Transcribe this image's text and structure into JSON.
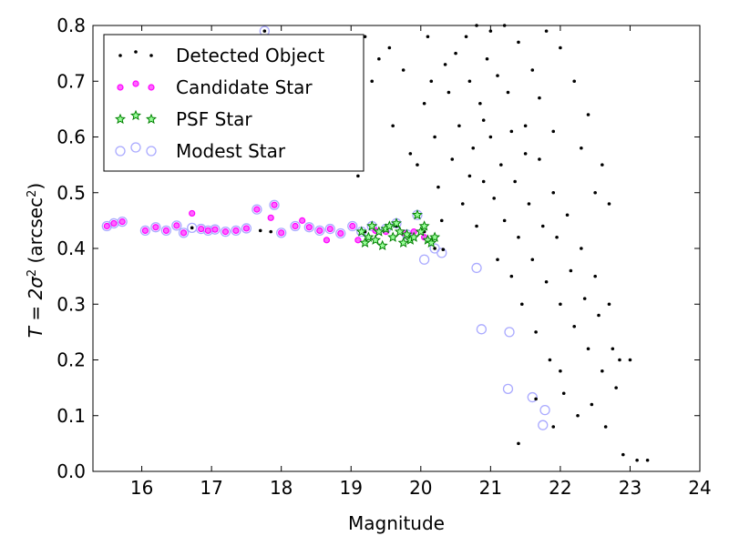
{
  "chart_data": {
    "type": "scatter",
    "xlabel": "Magnitude",
    "ylabel_prefix": "T = 2σ",
    "ylabel_suffix": " (arcsec",
    "ylabel_close": ")",
    "xlim": [
      15.3,
      24
    ],
    "ylim": [
      0.0,
      0.8
    ],
    "xticks": [
      16,
      17,
      18,
      19,
      20,
      21,
      22,
      23,
      24
    ],
    "yticks": [
      0.0,
      0.1,
      0.2,
      0.3,
      0.4,
      0.5,
      0.6,
      0.7,
      0.8
    ],
    "xtick_labels": [
      "16",
      "17",
      "18",
      "19",
      "20",
      "21",
      "22",
      "23",
      "24"
    ],
    "ytick_labels": [
      "0.0",
      "0.1",
      "0.2",
      "0.3",
      "0.4",
      "0.5",
      "0.6",
      "0.7",
      "0.8"
    ],
    "legend_position": "upper-left",
    "colors": {
      "detected": "#000000",
      "candidate": "#ff00ff",
      "psf": "#008000",
      "modest": "#aaaaff"
    },
    "series": [
      {
        "name": "Detected Object",
        "marker": "dot",
        "points": [
          [
            15.5,
            0.44
          ],
          [
            15.6,
            0.445
          ],
          [
            15.72,
            0.448
          ],
          [
            16.05,
            0.432
          ],
          [
            16.2,
            0.438
          ],
          [
            16.35,
            0.432
          ],
          [
            16.5,
            0.441
          ],
          [
            16.6,
            0.428
          ],
          [
            16.72,
            0.437
          ],
          [
            16.85,
            0.435
          ],
          [
            16.95,
            0.432
          ],
          [
            17.05,
            0.434
          ],
          [
            17.2,
            0.43
          ],
          [
            17.35,
            0.432
          ],
          [
            17.5,
            0.436
          ],
          [
            17.7,
            0.432
          ],
          [
            17.85,
            0.43
          ],
          [
            18.0,
            0.428
          ],
          [
            18.2,
            0.44
          ],
          [
            18.4,
            0.438
          ],
          [
            18.55,
            0.432
          ],
          [
            18.7,
            0.435
          ],
          [
            18.85,
            0.427
          ],
          [
            19.02,
            0.44
          ],
          [
            19.2,
            0.43
          ],
          [
            19.35,
            0.432
          ],
          [
            19.5,
            0.43
          ],
          [
            19.65,
            0.44
          ],
          [
            19.75,
            0.428
          ],
          [
            19.9,
            0.43
          ],
          [
            20.05,
            0.43
          ],
          [
            20.2,
            0.4
          ],
          [
            20.32,
            0.398
          ],
          [
            17.76,
            0.79
          ],
          [
            19.1,
            0.53
          ],
          [
            19.3,
            0.7
          ],
          [
            19.2,
            0.78
          ],
          [
            19.4,
            0.74
          ],
          [
            19.55,
            0.76
          ],
          [
            19.6,
            0.62
          ],
          [
            19.75,
            0.72
          ],
          [
            19.85,
            0.57
          ],
          [
            19.95,
            0.55
          ],
          [
            20.05,
            0.66
          ],
          [
            20.1,
            0.78
          ],
          [
            20.15,
            0.7
          ],
          [
            20.2,
            0.6
          ],
          [
            20.25,
            0.51
          ],
          [
            20.3,
            0.45
          ],
          [
            20.35,
            0.73
          ],
          [
            20.4,
            0.68
          ],
          [
            20.45,
            0.56
          ],
          [
            20.5,
            0.75
          ],
          [
            20.55,
            0.62
          ],
          [
            20.6,
            0.48
          ],
          [
            20.65,
            0.78
          ],
          [
            20.7,
            0.7
          ],
          [
            20.75,
            0.58
          ],
          [
            20.8,
            0.44
          ],
          [
            20.85,
            0.66
          ],
          [
            20.9,
            0.52
          ],
          [
            20.95,
            0.74
          ],
          [
            21.0,
            0.6
          ],
          [
            21.05,
            0.49
          ],
          [
            21.1,
            0.38
          ],
          [
            21.15,
            0.55
          ],
          [
            21.2,
            0.45
          ],
          [
            21.25,
            0.68
          ],
          [
            21.3,
            0.35
          ],
          [
            21.35,
            0.52
          ],
          [
            21.4,
            0.42
          ],
          [
            21.45,
            0.3
          ],
          [
            21.5,
            0.62
          ],
          [
            21.55,
            0.48
          ],
          [
            21.6,
            0.38
          ],
          [
            21.65,
            0.25
          ],
          [
            21.7,
            0.56
          ],
          [
            21.75,
            0.44
          ],
          [
            21.8,
            0.34
          ],
          [
            21.85,
            0.2
          ],
          [
            21.9,
            0.5
          ],
          [
            21.95,
            0.42
          ],
          [
            22.0,
            0.3
          ],
          [
            22.05,
            0.14
          ],
          [
            22.1,
            0.46
          ],
          [
            22.15,
            0.36
          ],
          [
            22.2,
            0.26
          ],
          [
            22.25,
            0.1
          ],
          [
            22.3,
            0.4
          ],
          [
            22.35,
            0.31
          ],
          [
            22.4,
            0.22
          ],
          [
            22.45,
            0.12
          ],
          [
            22.5,
            0.35
          ],
          [
            22.55,
            0.28
          ],
          [
            22.6,
            0.18
          ],
          [
            22.65,
            0.08
          ],
          [
            22.7,
            0.3
          ],
          [
            22.75,
            0.22
          ],
          [
            22.8,
            0.15
          ],
          [
            22.85,
            0.2
          ],
          [
            22.9,
            0.03
          ],
          [
            23.0,
            0.2
          ],
          [
            23.1,
            0.02
          ],
          [
            23.25,
            0.02
          ],
          [
            22.6,
            0.55
          ],
          [
            22.4,
            0.64
          ],
          [
            22.2,
            0.7
          ],
          [
            22.0,
            0.76
          ],
          [
            21.8,
            0.79
          ],
          [
            21.6,
            0.72
          ],
          [
            21.4,
            0.77
          ],
          [
            21.2,
            0.8
          ],
          [
            21.0,
            0.79
          ],
          [
            20.8,
            0.8
          ],
          [
            22.7,
            0.48
          ],
          [
            22.5,
            0.5
          ],
          [
            21.3,
            0.61
          ],
          [
            21.7,
            0.67
          ],
          [
            20.7,
            0.53
          ],
          [
            20.9,
            0.63
          ],
          [
            21.1,
            0.71
          ],
          [
            21.5,
            0.57
          ],
          [
            21.9,
            0.61
          ],
          [
            22.3,
            0.58
          ],
          [
            21.4,
            0.05
          ],
          [
            21.65,
            0.13
          ],
          [
            21.9,
            0.08
          ],
          [
            22.0,
            0.18
          ]
        ]
      },
      {
        "name": "Candidate Star",
        "marker": "circle",
        "points": [
          [
            15.5,
            0.44
          ],
          [
            15.6,
            0.445
          ],
          [
            15.72,
            0.448
          ],
          [
            16.05,
            0.432
          ],
          [
            16.2,
            0.438
          ],
          [
            16.35,
            0.432
          ],
          [
            16.5,
            0.441
          ],
          [
            16.6,
            0.428
          ],
          [
            16.72,
            0.463
          ],
          [
            16.85,
            0.435
          ],
          [
            16.95,
            0.432
          ],
          [
            17.05,
            0.434
          ],
          [
            17.2,
            0.43
          ],
          [
            17.35,
            0.432
          ],
          [
            17.5,
            0.436
          ],
          [
            17.65,
            0.47
          ],
          [
            17.85,
            0.455
          ],
          [
            17.9,
            0.478
          ],
          [
            18.0,
            0.428
          ],
          [
            18.2,
            0.44
          ],
          [
            18.3,
            0.45
          ],
          [
            18.4,
            0.438
          ],
          [
            18.55,
            0.432
          ],
          [
            18.65,
            0.415
          ],
          [
            18.7,
            0.435
          ],
          [
            18.85,
            0.427
          ],
          [
            19.02,
            0.44
          ],
          [
            19.1,
            0.415
          ],
          [
            19.35,
            0.432
          ],
          [
            19.5,
            0.43
          ],
          [
            19.75,
            0.428
          ],
          [
            19.9,
            0.43
          ],
          [
            20.05,
            0.42
          ]
        ]
      },
      {
        "name": "PSF Star",
        "marker": "star",
        "points": [
          [
            19.15,
            0.43
          ],
          [
            19.2,
            0.41
          ],
          [
            19.25,
            0.42
          ],
          [
            19.3,
            0.44
          ],
          [
            19.35,
            0.415
          ],
          [
            19.4,
            0.43
          ],
          [
            19.45,
            0.405
          ],
          [
            19.5,
            0.435
          ],
          [
            19.55,
            0.44
          ],
          [
            19.6,
            0.42
          ],
          [
            19.65,
            0.445
          ],
          [
            19.7,
            0.43
          ],
          [
            19.75,
            0.41
          ],
          [
            19.8,
            0.425
          ],
          [
            19.85,
            0.415
          ],
          [
            19.9,
            0.42
          ],
          [
            19.95,
            0.46
          ],
          [
            20.0,
            0.43
          ],
          [
            20.05,
            0.44
          ],
          [
            20.1,
            0.415
          ],
          [
            20.15,
            0.41
          ],
          [
            20.2,
            0.42
          ]
        ]
      },
      {
        "name": "Modest Star",
        "marker": "open-circle",
        "points": [
          [
            15.5,
            0.44
          ],
          [
            15.6,
            0.445
          ],
          [
            15.72,
            0.448
          ],
          [
            16.05,
            0.432
          ],
          [
            16.2,
            0.438
          ],
          [
            16.35,
            0.432
          ],
          [
            16.5,
            0.441
          ],
          [
            16.6,
            0.428
          ],
          [
            16.72,
            0.437
          ],
          [
            16.85,
            0.435
          ],
          [
            16.95,
            0.432
          ],
          [
            17.05,
            0.434
          ],
          [
            17.2,
            0.43
          ],
          [
            17.35,
            0.432
          ],
          [
            17.5,
            0.436
          ],
          [
            17.65,
            0.47
          ],
          [
            17.76,
            0.79
          ],
          [
            17.9,
            0.478
          ],
          [
            18.0,
            0.428
          ],
          [
            18.2,
            0.44
          ],
          [
            18.4,
            0.438
          ],
          [
            18.55,
            0.432
          ],
          [
            18.7,
            0.435
          ],
          [
            18.85,
            0.427
          ],
          [
            19.02,
            0.44
          ],
          [
            19.15,
            0.43
          ],
          [
            19.3,
            0.44
          ],
          [
            19.5,
            0.435
          ],
          [
            19.65,
            0.445
          ],
          [
            19.8,
            0.425
          ],
          [
            19.95,
            0.46
          ],
          [
            20.05,
            0.38
          ],
          [
            20.2,
            0.4
          ],
          [
            20.3,
            0.392
          ],
          [
            20.8,
            0.365
          ],
          [
            20.87,
            0.255
          ],
          [
            21.27,
            0.25
          ],
          [
            21.25,
            0.148
          ],
          [
            21.6,
            0.133
          ],
          [
            21.78,
            0.11
          ],
          [
            21.75,
            0.083
          ]
        ]
      }
    ]
  }
}
